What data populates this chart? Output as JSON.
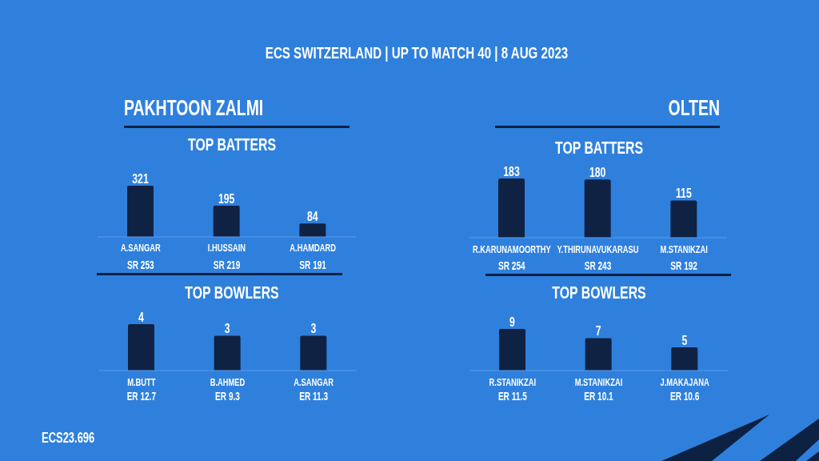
{
  "chart_data": [
    {
      "type": "other",
      "title": "ECS SWITZERLAND | UP TO MATCH 40 | 8 AUG 2023",
      "annotations": [
        "ECS23.696"
      ]
    },
    {
      "type": "bar",
      "title": "PAKHTOON ZALMI",
      "subtitle": "TOP BATTERS",
      "categories": [
        "A.SANGAR",
        "I.HUSSAIN",
        "A.HAMDARD"
      ],
      "values": [
        321,
        195,
        84
      ],
      "color": "#0f2243",
      "data_labels": true,
      "annotations": [
        "SR 253",
        "SR 219",
        "SR 191"
      ]
    },
    {
      "type": "bar",
      "title": "OLTEN",
      "subtitle": "TOP BATTERS",
      "categories": [
        "R.KARUNAMOORTHY",
        "Y.THIRUNAVUKARASU",
        "M.STANIKZAI"
      ],
      "values": [
        183,
        180,
        115
      ],
      "color": "#0f2243",
      "data_labels": true,
      "annotations": [
        "SR 254",
        "SR 243",
        "SR 192"
      ]
    },
    {
      "type": "bar",
      "title": "TOP BOWLERS",
      "categories": [
        "M.BUTT",
        "B.AHMED",
        "A.SANGAR"
      ],
      "values": [
        4,
        3,
        3
      ],
      "color": "#0f2243",
      "data_labels": true,
      "annotations": [
        "ER 12.7",
        "ER 9.3",
        "ER 11.3"
      ]
    },
    {
      "type": "bar",
      "title": "TOP BOWLERS",
      "categories": [
        "R.STANIKZAI",
        "M.STANIKZAI",
        "J.MAKAJANA"
      ],
      "values": [
        9,
        7,
        5
      ],
      "color": "#0f2243",
      "data_labels": true,
      "annotations": [
        "ER 11.5",
        "ER 10.1",
        "ER 10.6"
      ]
    }
  ]
}
